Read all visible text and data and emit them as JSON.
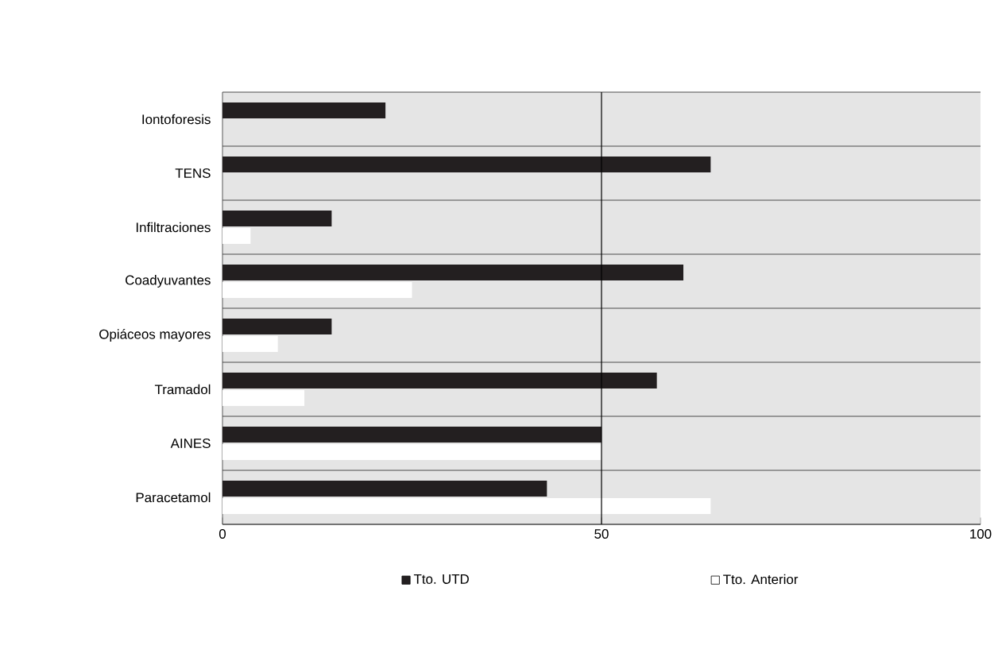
{
  "chart_data": {
    "type": "bar",
    "orientation": "horizontal",
    "categories": [
      "Iontoforesis",
      "TENS",
      "Infiltraciones",
      "Coadyuvantes",
      "Opiáceos mayores",
      "Tramadol",
      "AINES",
      "Paracetamol"
    ],
    "series": [
      {
        "name": "Tto. UTD",
        "color": "#231f20",
        "values": [
          21.5,
          64.4,
          14.4,
          60.8,
          14.4,
          57.3,
          50,
          42.8
        ]
      },
      {
        "name": "Tto. Anterior",
        "color": "#ffffff",
        "values": [
          null,
          null,
          3.7,
          25,
          7.3,
          10.8,
          50,
          64.4
        ]
      }
    ],
    "xlim": [
      0,
      100
    ],
    "xticks": [
      0,
      50,
      100
    ],
    "ref_lines": [
      {
        "axis": "x",
        "value": 50
      }
    ],
    "grid": "y",
    "legend": "bottom"
  }
}
